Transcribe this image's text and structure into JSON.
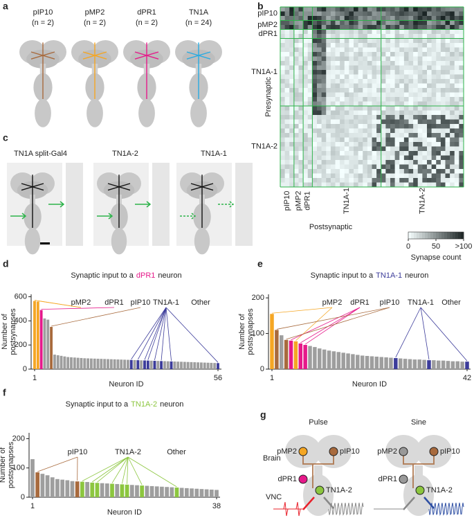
{
  "panels": {
    "a": {
      "letter": "a",
      "labels": [
        {
          "name": "pIP10",
          "n": "(n = 2)",
          "color": "#a86a3d"
        },
        {
          "name": "pMP2",
          "n": "(n = 2)",
          "color": "#f5a623"
        },
        {
          "name": "dPR1",
          "n": "(n = 2)",
          "color": "#e6198a"
        },
        {
          "name": "TN1A",
          "n": "(n = 24)",
          "color": "#29abe2"
        }
      ]
    },
    "b": {
      "letter": "b",
      "groups": [
        {
          "name": "pIP10",
          "color": "#a86a3d"
        },
        {
          "name": "pMP2",
          "color": "#f5a623"
        },
        {
          "name": "dPR1",
          "color": "#e6198a"
        },
        {
          "name": "TN1A-1",
          "color": "#3b3b9a"
        },
        {
          "name": "TN1A-2",
          "color": "#8cc63f"
        }
      ],
      "xlabel": "Postsynaptic",
      "ylabel": "Presynaptic",
      "colorbar": {
        "ticks": [
          0,
          50,
          {
            "value": 100,
            "label": ">100"
          }
        ],
        "lim": [
          0,
          100
        ],
        "label": "Synapse count"
      }
    },
    "c": {
      "letter": "c",
      "labels": [
        {
          "name": "TN1A split-Gal4",
          "color": "#000000"
        },
        {
          "name": "TN1A-2",
          "color": "#8cc63f"
        },
        {
          "name": "TN1A-1",
          "color": "#3b3b9a"
        }
      ]
    },
    "g": {
      "letter": "g",
      "columns": [
        {
          "name": "Pulse",
          "color": "#e8202a"
        },
        {
          "name": "Sine",
          "color": "#2e4fa3"
        }
      ],
      "rows": [
        "Brain",
        "VNC"
      ],
      "neurons": [
        "pMP2",
        "pIP10",
        "dPR1",
        "TN1A-2"
      ]
    }
  },
  "chart_data": [
    {
      "type": "bar",
      "panel": "d",
      "title": "Synaptic input to a",
      "title_highlight": "dPR1",
      "title_highlight_color": "#e6198a",
      "title_suffix": "neuron",
      "ylabel": [
        "Number of",
        "postsynapses"
      ],
      "xlabel": "Neuron ID",
      "x": [
        1,
        2,
        3,
        4,
        5,
        6,
        7,
        8,
        9,
        10,
        11,
        12,
        13,
        14,
        15,
        16,
        17,
        18,
        19,
        20,
        21,
        22,
        23,
        24,
        25,
        26,
        27,
        28,
        29,
        30,
        31,
        32,
        33,
        34,
        35,
        36,
        37,
        38,
        39,
        40,
        41,
        42,
        43,
        44,
        45,
        46,
        47,
        48,
        49,
        50,
        51,
        52,
        53,
        54,
        55,
        56
      ],
      "values": [
        565,
        560,
        490,
        420,
        410,
        350,
        120,
        115,
        110,
        105,
        100,
        98,
        96,
        94,
        92,
        90,
        89,
        88,
        87,
        86,
        85,
        84,
        83,
        82,
        81,
        80,
        79,
        78,
        77,
        76,
        75,
        74,
        73,
        72,
        71,
        70,
        69,
        68,
        67,
        66,
        65,
        64,
        63,
        62,
        61,
        60,
        59,
        58,
        57,
        56,
        55,
        54,
        53,
        52,
        51,
        50
      ],
      "colors": [
        "#f5a623",
        "#f5a623",
        "#e6198a",
        "#9e9e9e",
        "#9e9e9e",
        "#a86a3d",
        "#9e9e9e",
        "#9e9e9e",
        "#9e9e9e",
        "#9e9e9e",
        "#9e9e9e",
        "#9e9e9e",
        "#9e9e9e",
        "#9e9e9e",
        "#9e9e9e",
        "#9e9e9e",
        "#9e9e9e",
        "#9e9e9e",
        "#9e9e9e",
        "#9e9e9e",
        "#9e9e9e",
        "#9e9e9e",
        "#9e9e9e",
        "#9e9e9e",
        "#9e9e9e",
        "#9e9e9e",
        "#9e9e9e",
        "#9e9e9e",
        "#9e9e9e",
        "#3b3b9a",
        "#9e9e9e",
        "#3b3b9a",
        "#9e9e9e",
        "#3b3b9a",
        "#3b3b9a",
        "#9e9e9e",
        "#3b3b9a",
        "#9e9e9e",
        "#3b3b9a",
        "#9e9e9e",
        "#9e9e9e",
        "#3b3b9a",
        "#9e9e9e",
        "#9e9e9e",
        "#9e9e9e",
        "#9e9e9e",
        "#9e9e9e",
        "#9e9e9e",
        "#9e9e9e",
        "#9e9e9e",
        "#9e9e9e",
        "#9e9e9e",
        "#9e9e9e",
        "#9e9e9e",
        "#9e9e9e",
        "#3b3b9a"
      ],
      "legend": [
        {
          "name": "pMP2",
          "color": "#f5a623"
        },
        {
          "name": "dPR1",
          "color": "#e6198a"
        },
        {
          "name": "pIP10",
          "color": "#a86a3d"
        },
        {
          "name": "TN1A-1",
          "color": "#3b3b9a"
        },
        {
          "name": "Other",
          "color": "#9e9e9e"
        }
      ],
      "xlim": [
        1,
        56
      ],
      "xticks": [
        1,
        56
      ],
      "ylim": [
        0,
        620
      ],
      "yticks": [
        0,
        200,
        400,
        600
      ]
    },
    {
      "type": "bar",
      "panel": "e",
      "title": "Synaptic input to a",
      "title_highlight": "TN1A-1",
      "title_highlight_color": "#3b3b9a",
      "title_suffix": "neuron",
      "ylabel": [
        "Number of",
        "postsynapses"
      ],
      "xlabel": "Neuron ID",
      "x": [
        1,
        2,
        3,
        4,
        5,
        6,
        7,
        8,
        9,
        10,
        11,
        12,
        13,
        14,
        15,
        16,
        17,
        18,
        19,
        20,
        21,
        22,
        23,
        24,
        25,
        26,
        27,
        28,
        29,
        30,
        31,
        32,
        33,
        34,
        35,
        36,
        37,
        38,
        39,
        40,
        41,
        42
      ],
      "values": [
        155,
        110,
        95,
        82,
        80,
        78,
        72,
        68,
        65,
        62,
        58,
        55,
        52,
        50,
        48,
        46,
        44,
        42,
        40,
        38,
        37,
        36,
        35,
        34,
        33,
        32,
        31,
        30,
        29,
        28,
        27,
        27,
        26,
        25,
        25,
        24,
        24,
        23,
        22,
        22,
        21,
        21
      ],
      "colors": [
        "#f5a623",
        "#a86a3d",
        "#9e9e9e",
        "#a86a3d",
        "#e6198a",
        "#f5a623",
        "#e6198a",
        "#e6198a",
        "#9e9e9e",
        "#9e9e9e",
        "#9e9e9e",
        "#9e9e9e",
        "#9e9e9e",
        "#9e9e9e",
        "#9e9e9e",
        "#9e9e9e",
        "#9e9e9e",
        "#9e9e9e",
        "#9e9e9e",
        "#9e9e9e",
        "#9e9e9e",
        "#9e9e9e",
        "#9e9e9e",
        "#9e9e9e",
        "#9e9e9e",
        "#9e9e9e",
        "#3b3b9a",
        "#9e9e9e",
        "#9e9e9e",
        "#9e9e9e",
        "#9e9e9e",
        "#9e9e9e",
        "#9e9e9e",
        "#3b3b9a",
        "#9e9e9e",
        "#9e9e9e",
        "#9e9e9e",
        "#9e9e9e",
        "#9e9e9e",
        "#9e9e9e",
        "#9e9e9e",
        "#3b3b9a"
      ],
      "legend": [
        {
          "name": "pMP2",
          "color": "#f5a623"
        },
        {
          "name": "dPR1",
          "color": "#e6198a"
        },
        {
          "name": "pIP10",
          "color": "#a86a3d"
        },
        {
          "name": "TN1A-1",
          "color": "#3b3b9a"
        },
        {
          "name": "Other",
          "color": "#9e9e9e"
        }
      ],
      "xlim": [
        1,
        42
      ],
      "xticks": [
        1,
        42
      ],
      "ylim": [
        0,
        210
      ],
      "yticks": [
        0,
        100,
        200
      ]
    },
    {
      "type": "bar",
      "panel": "f",
      "title": "Synaptic input to a",
      "title_highlight": "TN1A-2",
      "title_highlight_color": "#8cc63f",
      "title_suffix": "neuron",
      "ylabel": [
        "Number of",
        "postsynapses"
      ],
      "xlabel": "Neuron ID",
      "x": [
        1,
        2,
        3,
        4,
        5,
        6,
        7,
        8,
        9,
        10,
        11,
        12,
        13,
        14,
        15,
        16,
        17,
        18,
        19,
        20,
        21,
        22,
        23,
        24,
        25,
        26,
        27,
        28,
        29,
        30,
        31,
        32,
        33,
        34,
        35,
        36,
        37,
        38
      ],
      "values": [
        130,
        85,
        80,
        75,
        68,
        62,
        60,
        58,
        55,
        54,
        53,
        52,
        50,
        49,
        48,
        47,
        46,
        45,
        44,
        43,
        42,
        41,
        40,
        39,
        38,
        37,
        36,
        35,
        34,
        33,
        32,
        31,
        30,
        29,
        28,
        27,
        26,
        25
      ],
      "colors": [
        "#9e9e9e",
        "#a86a3d",
        "#9e9e9e",
        "#9e9e9e",
        "#9e9e9e",
        "#9e9e9e",
        "#9e9e9e",
        "#9e9e9e",
        "#9e9e9e",
        "#a86a3d",
        "#8cc63f",
        "#9e9e9e",
        "#8cc63f",
        "#8cc63f",
        "#9e9e9e",
        "#9e9e9e",
        "#8cc63f",
        "#9e9e9e",
        "#8cc63f",
        "#8cc63f",
        "#9e9e9e",
        "#9e9e9e",
        "#8cc63f",
        "#9e9e9e",
        "#9e9e9e",
        "#9e9e9e",
        "#9e9e9e",
        "#9e9e9e",
        "#9e9e9e",
        "#8cc63f",
        "#9e9e9e",
        "#9e9e9e",
        "#9e9e9e",
        "#9e9e9e",
        "#9e9e9e",
        "#9e9e9e",
        "#9e9e9e",
        "#9e9e9e"
      ],
      "legend": [
        {
          "name": "pIP10",
          "color": "#a86a3d"
        },
        {
          "name": "TN1A-2",
          "color": "#8cc63f"
        },
        {
          "name": "Other",
          "color": "#9e9e9e"
        }
      ],
      "xlim": [
        1,
        38
      ],
      "xticks": [
        1,
        38
      ],
      "ylim": [
        0,
        220
      ],
      "yticks": [
        0,
        100,
        200
      ]
    }
  ]
}
